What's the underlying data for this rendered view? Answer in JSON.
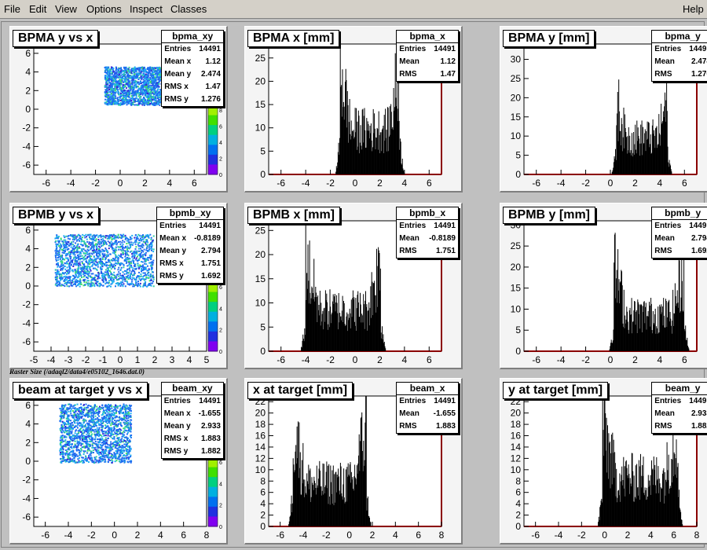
{
  "menu": {
    "file": "File",
    "edit": "Edit",
    "view": "View",
    "options": "Options",
    "inspect": "Inspect",
    "classes": "Classes",
    "help": "Help"
  },
  "raster_label": "Raster Size (/adaql2/data4/e05102_1646.dat.0)",
  "chart_data": [
    {
      "id": "p1",
      "type": "heatmap",
      "title": "BPMA y vs x",
      "stats_title": "bpma_xy",
      "stats": [
        [
          "Entries",
          "14491"
        ],
        [
          "Mean x",
          "1.12"
        ],
        [
          "Mean y",
          "2.474"
        ],
        [
          "RMS x",
          "1.47"
        ],
        [
          "RMS y",
          "1.276"
        ]
      ],
      "xlim": [
        -7,
        7
      ],
      "ylim": [
        -7,
        7
      ],
      "xticks": [
        "-6",
        "-4",
        "-2",
        "0",
        "2",
        "4",
        "6"
      ],
      "yticks": [
        "6",
        "4",
        "2",
        "0",
        "-2",
        "-4",
        "-6"
      ],
      "region": {
        "x": [
          -1.3,
          3.7
        ],
        "y": [
          0.5,
          4.6
        ]
      },
      "palette_ticks": [
        "8",
        "6",
        "4",
        "2",
        "0"
      ]
    },
    {
      "id": "p2",
      "type": "histogram",
      "title": "BPMA x [mm]",
      "stats_title": "bpma_x",
      "stats": [
        [
          "Entries",
          "14491"
        ],
        [
          "Mean",
          "1.12"
        ],
        [
          "RMS",
          "1.47"
        ]
      ],
      "xlim": [
        -7,
        7
      ],
      "ylim": [
        0,
        28
      ],
      "xticks": [
        "-6",
        "-4",
        "-2",
        "0",
        "2",
        "4",
        "6"
      ],
      "yticks": [
        "0",
        "5",
        "10",
        "15",
        "20",
        "25"
      ],
      "plateau": [
        -1.2,
        3.6
      ],
      "level": 10,
      "edge_peak": 24
    },
    {
      "id": "p3",
      "type": "histogram",
      "title": "BPMA y [mm]",
      "stats_title": "bpma_y",
      "stats": [
        [
          "Entries",
          "14491"
        ],
        [
          "Mean",
          "2.474"
        ],
        [
          "RMS",
          "1.276"
        ]
      ],
      "xlim": [
        -7,
        7
      ],
      "ylim": [
        0,
        34
      ],
      "xticks": [
        "-6",
        "-4",
        "-2",
        "0",
        "2",
        "4",
        "6"
      ],
      "yticks": [
        "0",
        "5",
        "10",
        "15",
        "20",
        "25",
        "30"
      ],
      "plateau": [
        0.5,
        4.6
      ],
      "level": 10,
      "edge_peak": 20
    },
    {
      "id": "p4",
      "type": "heatmap",
      "title": "BPMB y vs x",
      "stats_title": "bpmb_xy",
      "stats": [
        [
          "Entries",
          "14491"
        ],
        [
          "Mean x",
          "-0.8189"
        ],
        [
          "Mean y",
          "2.794"
        ],
        [
          "RMS x",
          "1.751"
        ],
        [
          "RMS y",
          "1.692"
        ]
      ],
      "xlim": [
        -5,
        5
      ],
      "ylim": [
        -7,
        7
      ],
      "xticks": [
        "-5",
        "-4",
        "-3",
        "-2",
        "-1",
        "0",
        "1",
        "2",
        "3",
        "4",
        "5"
      ],
      "yticks": [
        "6",
        "4",
        "2",
        "0",
        "-2",
        "-4",
        "-6"
      ],
      "region": {
        "x": [
          -3.8,
          1.9
        ],
        "y": [
          0.0,
          5.6
        ]
      },
      "palette_ticks": [
        "6",
        "4",
        "2",
        "0"
      ]
    },
    {
      "id": "p5",
      "type": "histogram",
      "title": "BPMB x [mm]",
      "stats_title": "bpmb_x",
      "stats": [
        [
          "Entries",
          "14491"
        ],
        [
          "Mean",
          "-0.8189"
        ],
        [
          "RMS",
          "1.751"
        ]
      ],
      "xlim": [
        -7,
        7
      ],
      "ylim": [
        0,
        27
      ],
      "xticks": [
        "-6",
        "-4",
        "-2",
        "0",
        "2",
        "4",
        "6"
      ],
      "yticks": [
        "0",
        "5",
        "10",
        "15",
        "20",
        "25"
      ],
      "plateau": [
        -4.0,
        2.1
      ],
      "level": 9,
      "edge_peak": 20
    },
    {
      "id": "p6",
      "type": "histogram",
      "title": "BPMB y [mm]",
      "stats_title": "bpmb_y",
      "stats": [
        [
          "Entries",
          "14491"
        ],
        [
          "Mean",
          "2.794"
        ],
        [
          "RMS",
          "1.692"
        ]
      ],
      "xlim": [
        -7,
        7
      ],
      "ylim": [
        0,
        31
      ],
      "xticks": [
        "-6",
        "-4",
        "-2",
        "0",
        "2",
        "4",
        "6"
      ],
      "yticks": [
        "0",
        "5",
        "10",
        "15",
        "20",
        "25",
        "30"
      ],
      "plateau": [
        0.3,
        6.0
      ],
      "level": 9,
      "edge_peak": 21
    },
    {
      "id": "p7",
      "type": "heatmap",
      "title": "beam at target y vs x",
      "stats_title": "beam_xy",
      "stats": [
        [
          "Entries",
          "14491"
        ],
        [
          "Mean x",
          "-1.655"
        ],
        [
          "Mean y",
          "2.933"
        ],
        [
          "RMS x",
          "1.883"
        ],
        [
          "RMS y",
          "1.882"
        ]
      ],
      "xlim": [
        -7,
        8
      ],
      "ylim": [
        -7,
        7
      ],
      "xticks": [
        "-6",
        "-4",
        "-2",
        "0",
        "2",
        "4",
        "6",
        "8"
      ],
      "yticks": [
        "6",
        "4",
        "2",
        "0",
        "-2",
        "-4",
        "-6"
      ],
      "region": {
        "x": [
          -4.8,
          1.4
        ],
        "y": [
          -0.1,
          6.2
        ]
      },
      "palette_ticks": [
        "6",
        "4",
        "2",
        "0"
      ]
    },
    {
      "id": "p8",
      "type": "histogram",
      "title": "x at target [mm]",
      "stats_title": "beam_x",
      "stats": [
        [
          "Entries",
          "14491"
        ],
        [
          "Mean",
          "-1.655"
        ],
        [
          "RMS",
          "1.883"
        ]
      ],
      "xlim": [
        -7,
        8
      ],
      "ylim": [
        0,
        23
      ],
      "xticks": [
        "-6",
        "-4",
        "-2",
        "0",
        "2",
        "4",
        "6",
        "8"
      ],
      "yticks": [
        "0",
        "2",
        "4",
        "6",
        "8",
        "10",
        "12",
        "14",
        "16",
        "18",
        "20",
        "22"
      ],
      "plateau": [
        -4.9,
        1.5
      ],
      "level": 8,
      "edge_peak": 19
    },
    {
      "id": "p9",
      "type": "histogram",
      "title": "y at target [mm]",
      "stats_title": "beam_y",
      "stats": [
        [
          "Entries",
          "14491"
        ],
        [
          "Mean",
          "2.933"
        ],
        [
          "RMS",
          "1.882"
        ]
      ],
      "xlim": [
        -7,
        8
      ],
      "ylim": [
        0,
        23
      ],
      "xticks": [
        "-6",
        "-4",
        "-2",
        "0",
        "2",
        "4",
        "6",
        "8"
      ],
      "yticks": [
        "0",
        "2",
        "4",
        "6",
        "8",
        "10",
        "12",
        "14",
        "16",
        "18",
        "20",
        "22"
      ],
      "plateau": [
        -0.2,
        6.4
      ],
      "level": 9,
      "edge_peak": 19
    }
  ]
}
